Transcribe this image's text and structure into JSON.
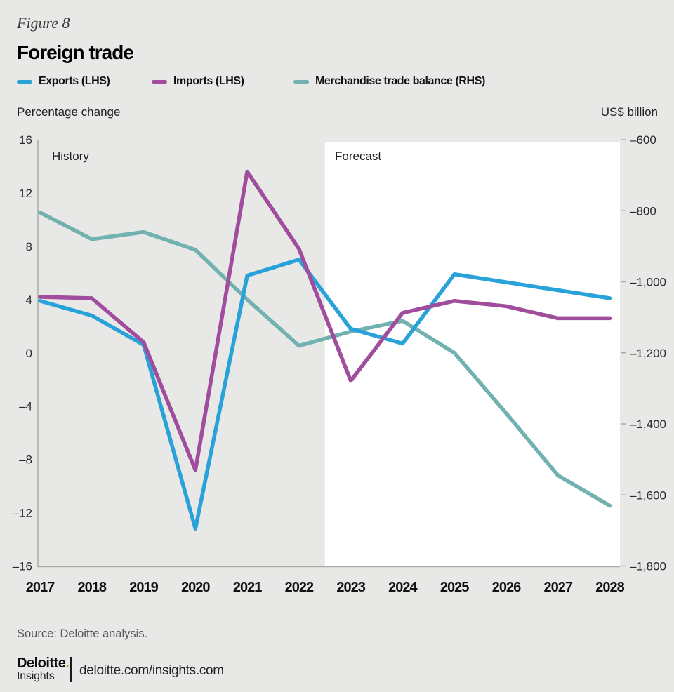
{
  "header": {
    "figure_label": "Figure 8",
    "title": "Foreign trade"
  },
  "legend": {
    "items": [
      {
        "label": "Exports (LHS)",
        "color": "#29A2D9"
      },
      {
        "label": "Imports (LHS)",
        "color": "#A04D9E"
      },
      {
        "label": "Merchandise trade balance (RHS)",
        "color": "#71B2B1"
      }
    ]
  },
  "axis_headers": {
    "left": "Percentage change",
    "right": "US$ billion"
  },
  "chart_data": {
    "type": "line",
    "title": "Foreign trade",
    "categories": [
      "2017",
      "2018",
      "2019",
      "2020",
      "2021",
      "2022",
      "2023",
      "2024",
      "2025",
      "2026",
      "2027",
      "2028"
    ],
    "region_labels": {
      "history": "History",
      "forecast": "Forecast"
    },
    "forecast_boundary_after": "2022",
    "left_axis": {
      "title": "Percentage change",
      "min": -16,
      "max": 16,
      "tick_values": [
        16,
        12,
        8,
        4,
        0,
        -4,
        -8,
        -12,
        -16
      ],
      "tick_labels": [
        "16",
        "12",
        "8",
        "4",
        "0",
        "–4",
        "–8",
        "–12",
        "–16"
      ]
    },
    "right_axis": {
      "title": "US$ billion",
      "min": -1800,
      "max": -600,
      "tick_values": [
        -600,
        -800,
        -1000,
        -1200,
        -1400,
        -1600,
        -1800
      ],
      "tick_labels": [
        "–600",
        "–800",
        "–1,000",
        "–1,200",
        "–1,400",
        "–1,600",
        "–1,800"
      ]
    },
    "series": [
      {
        "name": "Exports (LHS)",
        "axis": "left",
        "color": "#29A2D9",
        "values": [
          3.9,
          2.8,
          0.6,
          -13.2,
          5.8,
          7.0,
          1.8,
          0.7,
          5.9,
          5.3,
          4.7,
          4.1
        ]
      },
      {
        "name": "Imports (LHS)",
        "axis": "left",
        "color": "#A04D9E",
        "values": [
          4.2,
          4.1,
          0.8,
          -8.8,
          13.6,
          7.8,
          -2.1,
          3.0,
          3.9,
          3.5,
          2.6,
          2.6
        ]
      },
      {
        "name": "Merchandise trade balance (RHS)",
        "axis": "right",
        "color": "#71B2B1",
        "values": [
          -805,
          -880,
          -860,
          -910,
          -1050,
          -1180,
          -1140,
          -1110,
          -1200,
          -1370,
          -1545,
          -1630
        ]
      }
    ],
    "grid": "off",
    "legend_position": "top"
  },
  "footer": {
    "source": "Source: Deloitte analysis.",
    "logo_primary": "Deloitte",
    "logo_dot": ".",
    "logo_dot_color": "#86BC25",
    "logo_secondary": "Insights",
    "link_text": "deloitte.com/insights.com"
  },
  "colors": {
    "background": "#E8E8E6",
    "forecast_background": "#FFFFFF",
    "axis_line": "#ABACA9",
    "tick_text": "#2B2B2B",
    "year_text": "#111111"
  }
}
